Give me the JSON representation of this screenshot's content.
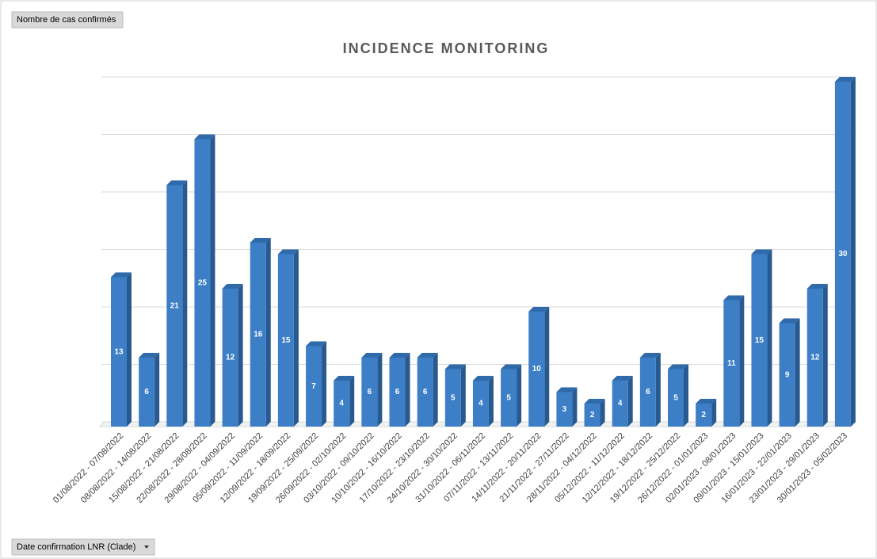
{
  "chart_data": {
    "type": "bar",
    "title": "INCIDENCE MONITORING",
    "value_field": "Nombre de cas confirmés",
    "axis_field": "Date confirmation LNR (Clade)",
    "categories": [
      "01/08/2022 - 07/08/2022",
      "08/08/2022 - 14/08/2022",
      "15/08/2022 - 21/08/2022",
      "22/08/2022 - 28/08/2022",
      "29/08/2022 - 04/09/2022",
      "05/09/2022 - 11/09/2022",
      "12/09/2022 - 18/09/2022",
      "19/09/2022 - 25/09/2022",
      "26/09/2022 - 02/10/2022",
      "03/10/2022 - 09/10/2022",
      "10/10/2022 - 16/10/2022",
      "17/10/2022 - 23/10/2022",
      "24/10/2022 - 30/10/2022",
      "31/10/2022 - 06/11/2022",
      "07/11/2022 - 13/11/2022",
      "14/11/2022 - 20/11/2022",
      "21/11/2022 - 27/11/2022",
      "28/11/2022 - 04/12/2022",
      "05/12/2022 - 11/12/2022",
      "12/12/2022 - 18/12/2022",
      "19/12/2022 - 25/12/2022",
      "26/12/2022 - 01/01/2023",
      "02/01/2023 - 08/01/2023",
      "09/01/2023 - 15/01/2023",
      "16/01/2023 - 22/01/2023",
      "23/01/2023 - 29/01/2023",
      "30/01/2023 - 05/02/2023"
    ],
    "values": [
      13,
      6,
      21,
      25,
      12,
      16,
      15,
      7,
      4,
      6,
      6,
      6,
      5,
      4,
      5,
      10,
      3,
      2,
      4,
      6,
      5,
      2,
      11,
      15,
      9,
      12,
      30
    ],
    "color": "#3d7fc6",
    "ylim": [
      0,
      30
    ],
    "yticks": [
      0,
      5,
      10,
      15,
      20,
      25,
      30
    ],
    "grid": true
  }
}
